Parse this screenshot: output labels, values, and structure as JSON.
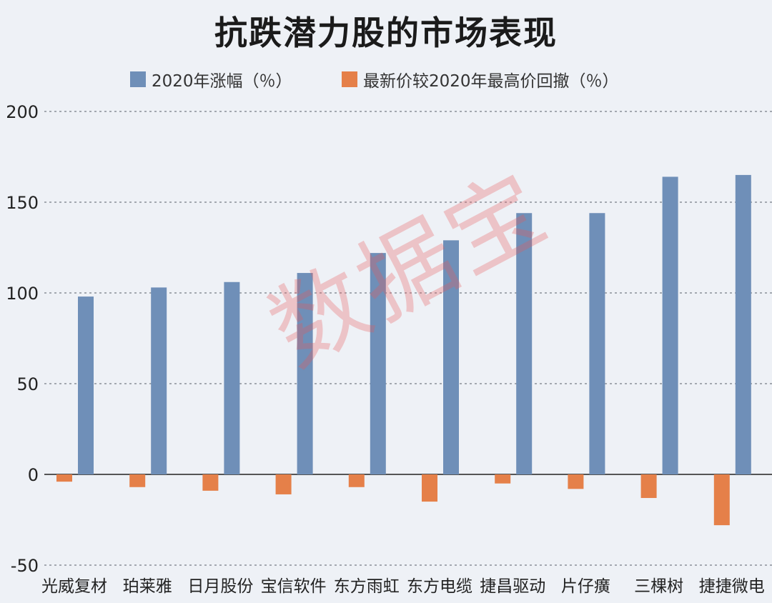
{
  "chart_data": {
    "type": "bar",
    "title": "抗跌潜力股的市场表现",
    "categories": [
      "光威复材",
      "珀莱雅",
      "日月股份",
      "宝信软件",
      "东方雨虹",
      "东方电缆",
      "捷昌驱动",
      "片仔癀",
      "三棵树",
      "捷捷微电"
    ],
    "series": [
      {
        "name": "2020年涨幅（％）",
        "color": "#6f8fb8",
        "values": [
          98,
          103,
          106,
          111,
          122,
          129,
          144,
          144,
          164,
          165
        ]
      },
      {
        "name": "最新价较2020年最高价回撤（％）",
        "color": "#e58049",
        "values": [
          -4,
          -7,
          -9,
          -11,
          -7,
          -15,
          -5,
          -8,
          -13,
          -28
        ]
      }
    ],
    "ylim": [
      -50,
      200
    ],
    "yticks": [
      200,
      150,
      100,
      50,
      0,
      -50
    ],
    "grid": true,
    "legend_position": "top",
    "xlabel": "",
    "ylabel": ""
  },
  "watermark": "数据宝"
}
